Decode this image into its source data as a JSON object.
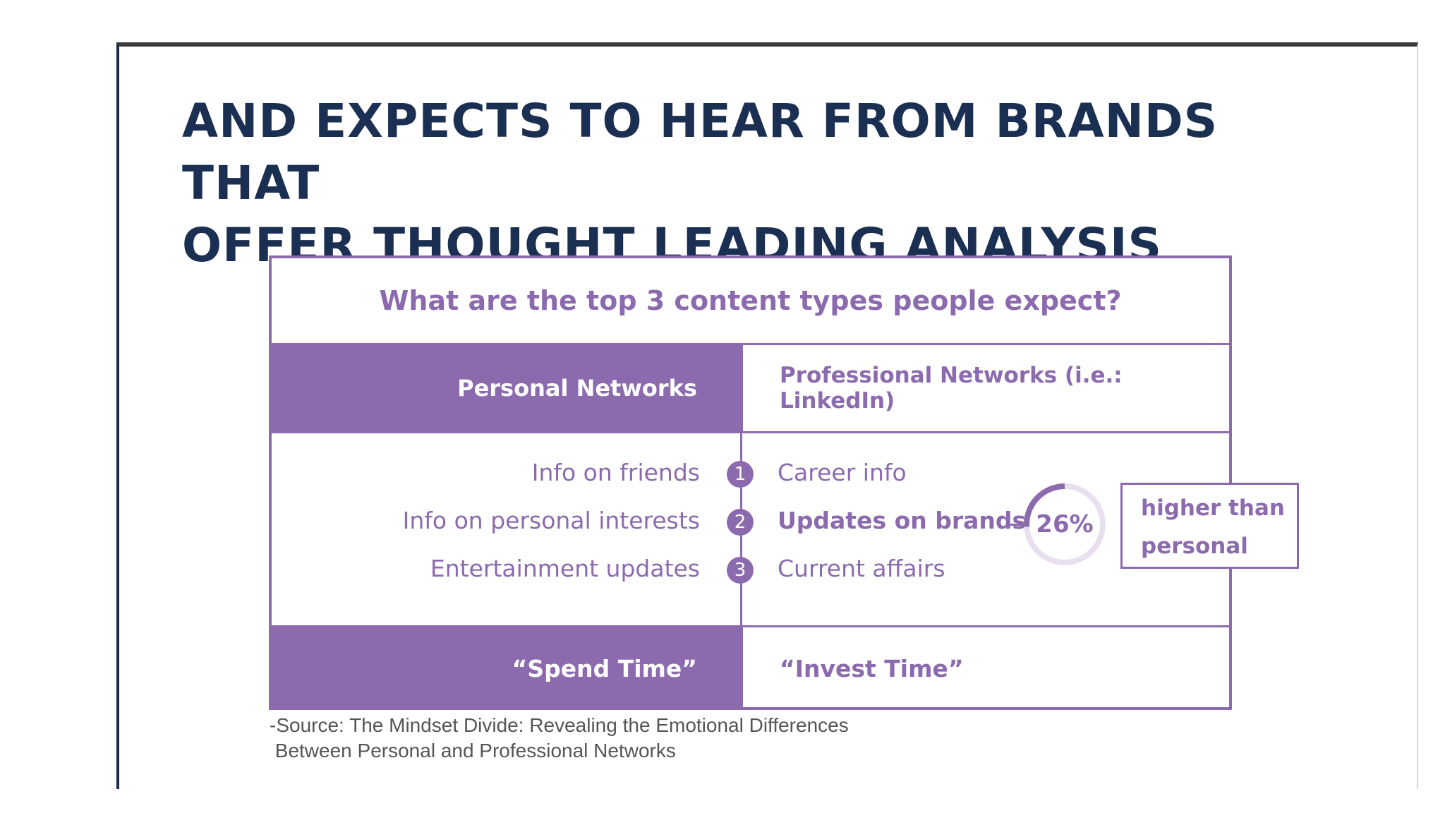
{
  "title": {
    "line1": "AND EXPECTS TO HEAR FROM BRANDS THAT",
    "line2": "OFFER THOUGHT LEADING ANALYSIS"
  },
  "card": {
    "question": "What are the top 3 content types people expect?",
    "header_left": "Personal Networks",
    "header_right": "Professional Networks (i.e.: LinkedIn)",
    "rows": [
      {
        "num": "1",
        "left": "Info on friends",
        "right": "Career info"
      },
      {
        "num": "2",
        "left": "Info on personal interests",
        "right": "Updates on brands"
      },
      {
        "num": "3",
        "left": "Entertainment updates",
        "right": "Current affairs"
      }
    ],
    "footer_left": "“Spend Time”",
    "footer_right": "“Invest Time”"
  },
  "highlight": {
    "percent_label": "26%",
    "percent_value": 26,
    "callout_line1": "higher than",
    "callout_line2": "personal"
  },
  "source": {
    "line1": "-Source: The Mindset Divide: Revealing the Emotional Differences",
    "line2": " Between Personal and Professional Networks"
  },
  "colors": {
    "accent": "#8c6aae",
    "title": "#1b2f52"
  }
}
